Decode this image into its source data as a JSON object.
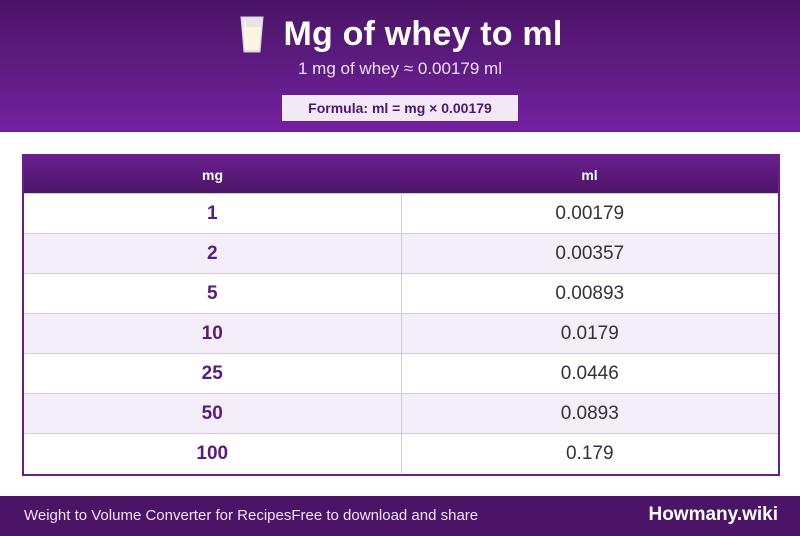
{
  "header": {
    "icon": "milk-glass-icon",
    "title": "Mg of whey to ml",
    "subtitle": "1 mg of whey ≈ 0.00179 ml",
    "formula": "Formula: ml = mg × 0.00179"
  },
  "table": {
    "columns": [
      "mg",
      "ml"
    ],
    "rows": [
      {
        "mg": "1",
        "ml": "0.00179"
      },
      {
        "mg": "2",
        "ml": "0.00357"
      },
      {
        "mg": "5",
        "ml": "0.00893"
      },
      {
        "mg": "10",
        "ml": "0.0179"
      },
      {
        "mg": "25",
        "ml": "0.0446"
      },
      {
        "mg": "50",
        "ml": "0.0893"
      },
      {
        "mg": "100",
        "ml": "0.179"
      }
    ]
  },
  "footer": {
    "left_primary": "Weight to Volume Converter for Recipes",
    "left_secondary": "Free to download and share",
    "brand": "Howmany.wiki"
  },
  "colors": {
    "header_dark": "#4b1466",
    "header_light": "#7420a0",
    "accent_text": "#5b1a80",
    "row_stripe": "#f4eef8"
  }
}
